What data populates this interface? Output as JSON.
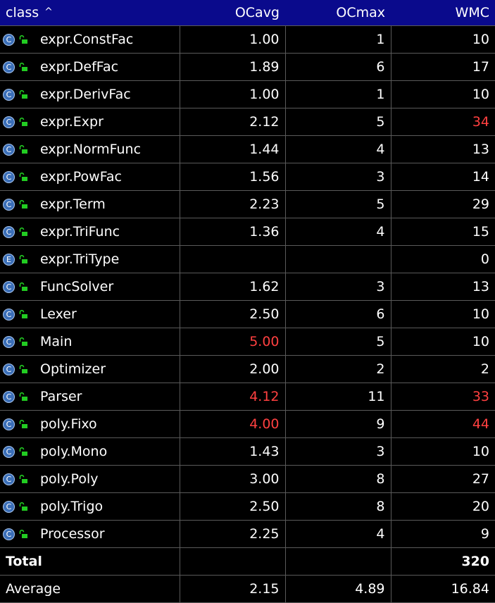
{
  "header": {
    "class": "class",
    "sort_indicator": "^",
    "ocavg": "OCavg",
    "ocmax": "OCmax",
    "wmc": "WMC"
  },
  "rows": [
    {
      "kind": "C",
      "name": "expr.ConstFac",
      "ocavg": "1.00",
      "ocmax": "1",
      "wmc": "10",
      "ocavg_hot": false,
      "wmc_hot": false
    },
    {
      "kind": "C",
      "name": "expr.DefFac",
      "ocavg": "1.89",
      "ocmax": "6",
      "wmc": "17",
      "ocavg_hot": false,
      "wmc_hot": false
    },
    {
      "kind": "C",
      "name": "expr.DerivFac",
      "ocavg": "1.00",
      "ocmax": "1",
      "wmc": "10",
      "ocavg_hot": false,
      "wmc_hot": false
    },
    {
      "kind": "C",
      "name": "expr.Expr",
      "ocavg": "2.12",
      "ocmax": "5",
      "wmc": "34",
      "ocavg_hot": false,
      "wmc_hot": true
    },
    {
      "kind": "C",
      "name": "expr.NormFunc",
      "ocavg": "1.44",
      "ocmax": "4",
      "wmc": "13",
      "ocavg_hot": false,
      "wmc_hot": false
    },
    {
      "kind": "C",
      "name": "expr.PowFac",
      "ocavg": "1.56",
      "ocmax": "3",
      "wmc": "14",
      "ocavg_hot": false,
      "wmc_hot": false
    },
    {
      "kind": "C",
      "name": "expr.Term",
      "ocavg": "2.23",
      "ocmax": "5",
      "wmc": "29",
      "ocavg_hot": false,
      "wmc_hot": false
    },
    {
      "kind": "C",
      "name": "expr.TriFunc",
      "ocavg": "1.36",
      "ocmax": "4",
      "wmc": "15",
      "ocavg_hot": false,
      "wmc_hot": false
    },
    {
      "kind": "E",
      "name": "expr.TriType",
      "ocavg": "",
      "ocmax": "",
      "wmc": "0",
      "ocavg_hot": false,
      "wmc_hot": false
    },
    {
      "kind": "C",
      "name": "FuncSolver",
      "ocavg": "1.62",
      "ocmax": "3",
      "wmc": "13",
      "ocavg_hot": false,
      "wmc_hot": false
    },
    {
      "kind": "C",
      "name": "Lexer",
      "ocavg": "2.50",
      "ocmax": "6",
      "wmc": "10",
      "ocavg_hot": false,
      "wmc_hot": false
    },
    {
      "kind": "C",
      "name": "Main",
      "ocavg": "5.00",
      "ocmax": "5",
      "wmc": "10",
      "ocavg_hot": true,
      "wmc_hot": false
    },
    {
      "kind": "C",
      "name": "Optimizer",
      "ocavg": "2.00",
      "ocmax": "2",
      "wmc": "2",
      "ocavg_hot": false,
      "wmc_hot": false
    },
    {
      "kind": "C",
      "name": "Parser",
      "ocavg": "4.12",
      "ocmax": "11",
      "wmc": "33",
      "ocavg_hot": true,
      "wmc_hot": true
    },
    {
      "kind": "C",
      "name": "poly.Fixo",
      "ocavg": "4.00",
      "ocmax": "9",
      "wmc": "44",
      "ocavg_hot": true,
      "wmc_hot": true
    },
    {
      "kind": "C",
      "name": "poly.Mono",
      "ocavg": "1.43",
      "ocmax": "3",
      "wmc": "10",
      "ocavg_hot": false,
      "wmc_hot": false
    },
    {
      "kind": "C",
      "name": "poly.Poly",
      "ocavg": "3.00",
      "ocmax": "8",
      "wmc": "27",
      "ocavg_hot": false,
      "wmc_hot": false
    },
    {
      "kind": "C",
      "name": "poly.Trigo",
      "ocavg": "2.50",
      "ocmax": "8",
      "wmc": "20",
      "ocavg_hot": false,
      "wmc_hot": false
    },
    {
      "kind": "C",
      "name": "Processor",
      "ocavg": "2.25",
      "ocmax": "4",
      "wmc": "9",
      "ocavg_hot": false,
      "wmc_hot": false
    }
  ],
  "total": {
    "label": "Total",
    "ocavg": "",
    "ocmax": "",
    "wmc": "320"
  },
  "average": {
    "label": "Average",
    "ocavg": "2.15",
    "ocmax": "4.89",
    "wmc": "16.84"
  },
  "colors": {
    "header_bg": "#0a0a8c",
    "row_bg": "#000000",
    "grid": "#5a5a5a",
    "hot_value": "#ff4040",
    "class_icon": "#3b6fb8",
    "lock_icon": "#22cc22"
  },
  "icons": {
    "class_kind": "class-icon",
    "enum_kind": "enum-icon",
    "access": "unlocked-padlock-icon",
    "sort": "sort-ascending-icon"
  }
}
